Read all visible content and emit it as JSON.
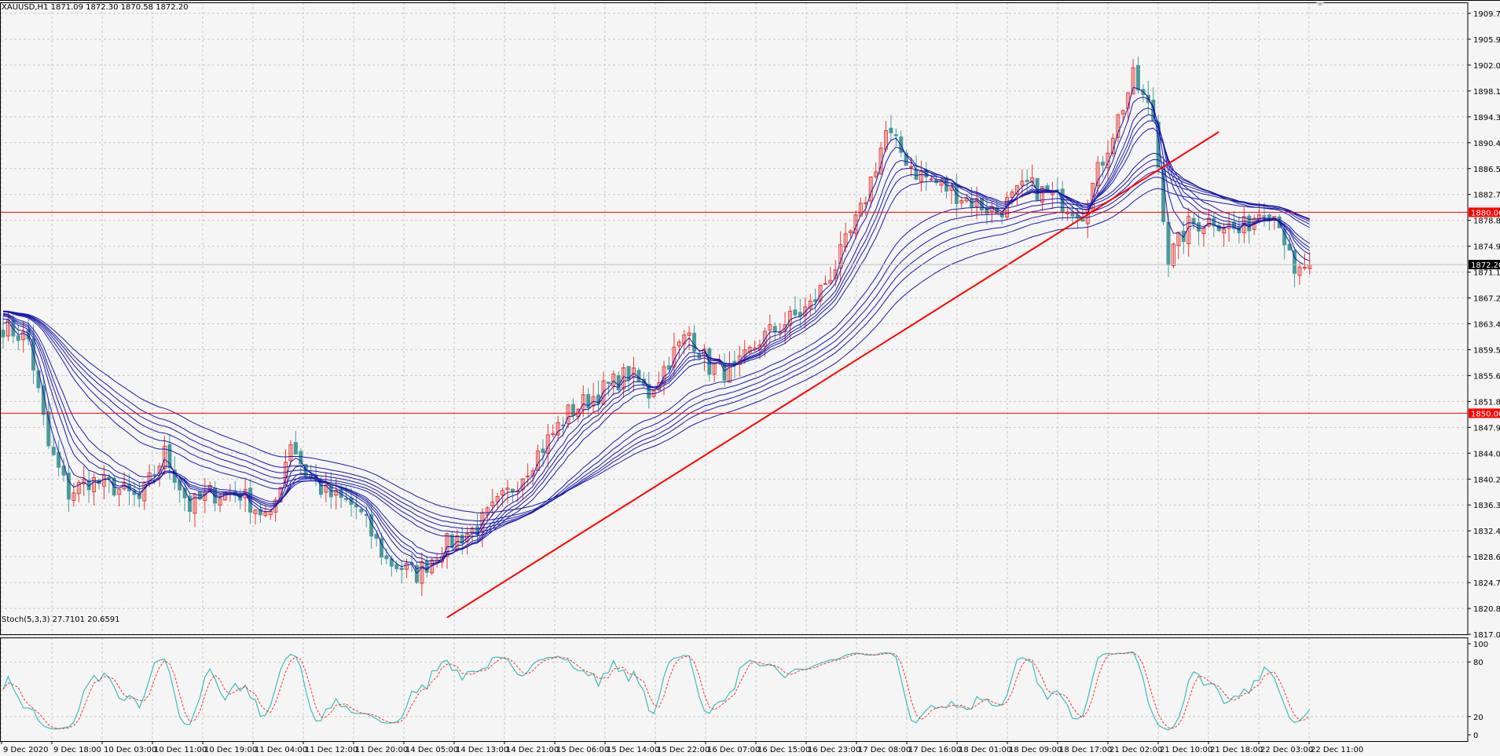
{
  "header": {
    "main_title": "XAUUSD,H1  1871.09 1872.30 1870.58 1872.20",
    "sub_title": "Stoch(5,3,3) 27.7101 20.6591"
  },
  "colors": {
    "bull": "#e53935",
    "bear": "#4a9a9a",
    "ema": "#1a1aa8",
    "hline": "#ff0000",
    "trend": "#ff0000",
    "stoch_main": "#3fbcbc",
    "stoch_signal": "#e53935",
    "grid": "#c8c8c8"
  },
  "chart_data": [
    {
      "type": "candlestick",
      "symbol": "XAUUSD",
      "timeframe": "H1",
      "ylim": [
        1817.0,
        1909.7
      ],
      "y_ticks": [
        "1909.70",
        "1905.90",
        "1902.00",
        "1898.10",
        "1894.30",
        "1890.40",
        "1886.50",
        "1882.70",
        "1878.80",
        "1874.90",
        "1871.10",
        "1867.20",
        "1863.40",
        "1859.50",
        "1855.60",
        "1851.80",
        "1847.90",
        "1844.00",
        "1840.20",
        "1836.30",
        "1832.40",
        "1828.60",
        "1824.70",
        "1820.80",
        "1817.00"
      ],
      "x_ticks": [
        "9 Dec 2020",
        "9 Dec 18:00",
        "10 Dec 03:00",
        "10 Dec 11:00",
        "10 Dec 19:00",
        "11 Dec 04:00",
        "11 Dec 12:00",
        "11 Dec 20:00",
        "14 Dec 05:00",
        "14 Dec 13:00",
        "14 Dec 21:00",
        "15 Dec 06:00",
        "15 Dec 14:00",
        "15 Dec 22:00",
        "16 Dec 07:00",
        "16 Dec 15:00",
        "16 Dec 23:00",
        "17 Dec 08:00",
        "17 Dec 16:00",
        "18 Dec 01:00",
        "18 Dec 09:00",
        "18 Dec 17:00",
        "21 Dec 02:00",
        "21 Dec 10:00",
        "21 Dec 18:00",
        "22 Dec 03:00",
        "22 Dec 11:00"
      ],
      "price_path": [
        [
          0,
          1863
        ],
        [
          5,
          1861
        ],
        [
          9,
          1845
        ],
        [
          13,
          1838
        ],
        [
          17,
          1840
        ],
        [
          22,
          1839
        ],
        [
          27,
          1837
        ],
        [
          32,
          1844
        ],
        [
          37,
          1836
        ],
        [
          41,
          1838
        ],
        [
          47,
          1838
        ],
        [
          53,
          1834
        ],
        [
          57,
          1846
        ],
        [
          60,
          1841
        ],
        [
          64,
          1838
        ],
        [
          70,
          1836
        ],
        [
          76,
          1828
        ],
        [
          82,
          1826
        ],
        [
          87,
          1830
        ],
        [
          94,
          1833
        ],
        [
          100,
          1838
        ],
        [
          106,
          1844
        ],
        [
          112,
          1850
        ],
        [
          118,
          1853
        ],
        [
          124,
          1856
        ],
        [
          128,
          1853
        ],
        [
          132,
          1858
        ],
        [
          136,
          1862
        ],
        [
          140,
          1857
        ],
        [
          145,
          1856
        ],
        [
          150,
          1861
        ],
        [
          156,
          1864
        ],
        [
          160,
          1866
        ],
        [
          165,
          1872
        ],
        [
          170,
          1880
        ],
        [
          175,
          1892
        ],
        [
          181,
          1886
        ],
        [
          186,
          1884
        ],
        [
          191,
          1882
        ],
        [
          197,
          1880
        ],
        [
          203,
          1884
        ],
        [
          209,
          1882
        ],
        [
          214,
          1880
        ],
        [
          219,
          1890
        ],
        [
          224,
          1900
        ],
        [
          228,
          1894
        ],
        [
          231,
          1873
        ],
        [
          235,
          1878
        ],
        [
          240,
          1879
        ],
        [
          245,
          1877
        ],
        [
          250,
          1881
        ],
        [
          253,
          1879
        ],
        [
          256,
          1870
        ],
        [
          258,
          1872
        ]
      ],
      "horizontal_lines": [
        1880.0,
        1850.0
      ],
      "price_labels": [
        "1880.00",
        "1850.00",
        "1872.20"
      ],
      "current_price": 1872.2,
      "trendline": {
        "from": [
          88,
          1819.5
        ],
        "to": [
          241,
          1892.0
        ]
      }
    },
    {
      "type": "line",
      "name": "Stoch(5,3,3)",
      "ylim": [
        0,
        100
      ],
      "y_ticks": [
        "100",
        "80",
        "20",
        "0"
      ],
      "levels": [
        80,
        20
      ],
      "main_value": 27.7101,
      "signal_value": 20.6591
    }
  ]
}
